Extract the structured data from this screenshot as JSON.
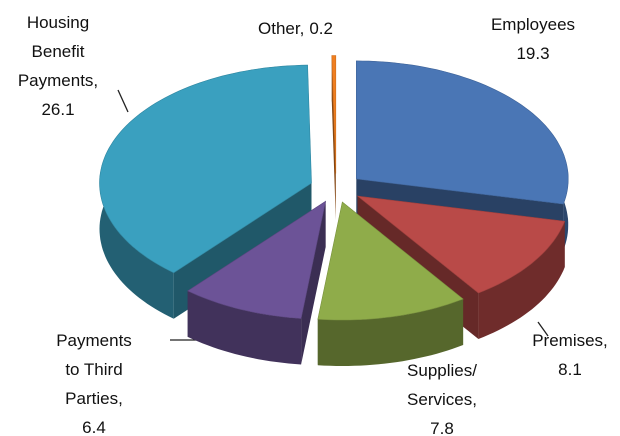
{
  "chart_data": {
    "type": "pie",
    "categories": [
      "Employees",
      "Premises,",
      "Supplies/ Services,",
      "Payments to Third Parties,",
      "Housing Benefit Payments,",
      "Other,"
    ],
    "values": [
      19.3,
      8.1,
      7.8,
      6.4,
      26.1,
      0.2
    ],
    "colors": [
      "#4a76b5",
      "#b94a48",
      "#8fac4a",
      "#6c5397",
      "#3aa0bf",
      "#f07f20"
    ],
    "exploded": true,
    "three_d": true
  }
}
